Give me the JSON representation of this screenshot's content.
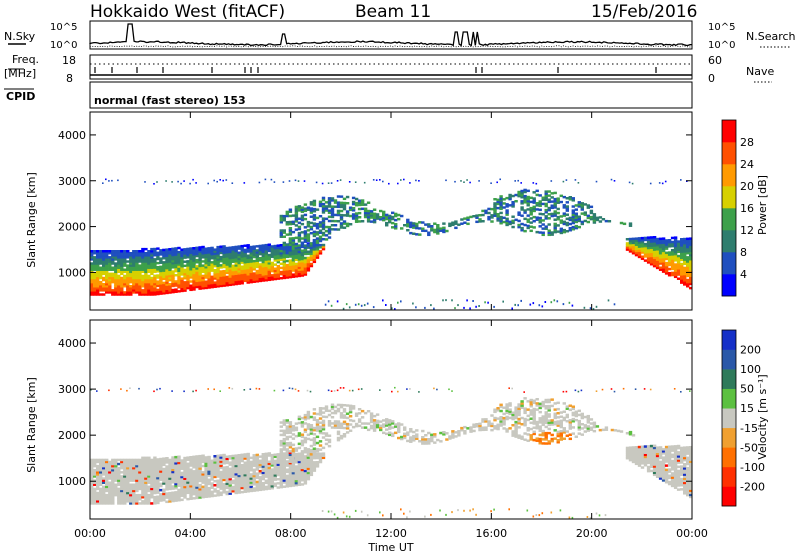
{
  "header": {
    "radar": "Hokkaido West (fitACF)",
    "beam": "Beam 11",
    "date": "15/Feb/2016"
  },
  "noise_panel": {
    "left_label": "N.Sky",
    "left_ticks": [
      "10^5",
      "10^0"
    ],
    "right_label": "N.Search",
    "right_ticks": [
      "10^5",
      "10^0"
    ]
  },
  "freq_panel": {
    "left_label_line1": "Freq.",
    "left_label_line2": "[MHz]",
    "left_ticks": [
      "18",
      "8"
    ],
    "right_label": "Nave",
    "right_ticks": [
      "60",
      "0"
    ]
  },
  "cpid_panel": {
    "label": "CPID",
    "text": "normal (fast stereo) 153"
  },
  "x_axis": {
    "label": "Time UT",
    "ticks": [
      "00:00",
      "04:00",
      "08:00",
      "12:00",
      "16:00",
      "20:00",
      "00:00"
    ]
  },
  "y_axis": {
    "label": "Slant Range [km]",
    "ticks": [
      "1000",
      "2000",
      "3000",
      "4000"
    ]
  },
  "power_colorbar": {
    "label": "Power [dB]",
    "ticks": [
      "4",
      "8",
      "12",
      "16",
      "20",
      "24",
      "28"
    ],
    "colors": [
      "#0000ff",
      "#1f4fbf",
      "#2e7d6e",
      "#3da04a",
      "#d7d000",
      "#ff9a00",
      "#ff5000",
      "#ff0000"
    ]
  },
  "velocity_colorbar": {
    "label": "Velocity [m s⁻¹]",
    "ticks": [
      "200",
      "100",
      "50",
      "15",
      "-15",
      "-50",
      "-100",
      "-200"
    ],
    "colors": [
      "#1530c8",
      "#2a58a8",
      "#2e7a5a",
      "#5cc040",
      "#c8c8c0",
      "#f0a030",
      "#ff7000",
      "#ff3000",
      "#ff0000"
    ]
  },
  "chart_data": [
    {
      "type": "heatmap",
      "title": "Power",
      "xlabel": "Time UT",
      "ylabel": "Slant Range [km]",
      "xlim": [
        "00:00",
        "24:00"
      ],
      "ylim": [
        180,
        4500
      ],
      "colorbar": {
        "label": "Power [dB]",
        "range": [
          0,
          30
        ]
      },
      "dominant_echo_regions": [
        {
          "time_start_h": 0.0,
          "time_end_h": 8.5,
          "range_km": [
            500,
            1600
          ],
          "power_db": "16-28"
        },
        {
          "time_start_h": 8.5,
          "time_end_h": 21.5,
          "range_km": [
            1600,
            3000
          ],
          "power_db": "4-14"
        },
        {
          "time_start_h": 21.5,
          "time_end_h": 24.0,
          "range_km": [
            600,
            1700
          ],
          "power_db": "12-28"
        }
      ]
    },
    {
      "type": "heatmap",
      "title": "Velocity",
      "xlabel": "Time UT",
      "ylabel": "Slant Range [km]",
      "xlim": [
        "00:00",
        "24:00"
      ],
      "ylim": [
        180,
        4500
      ],
      "colorbar": {
        "label": "Velocity [m s-1]",
        "range": [
          -200,
          200
        ]
      },
      "dominant_echo_regions": [
        {
          "time_start_h": 0.0,
          "time_end_h": 8.5,
          "range_km": [
            500,
            1600
          ],
          "velocity": "-15 to 15 (ground scatter)"
        },
        {
          "time_start_h": 8.5,
          "time_end_h": 21.5,
          "range_km": [
            1600,
            3000
          ],
          "velocity": "-15 to 15 with -50 to -100 patch near 19:00"
        },
        {
          "time_start_h": 21.5,
          "time_end_h": 24.0,
          "range_km": [
            600,
            1700
          ],
          "velocity": "-15 to 50"
        }
      ]
    }
  ]
}
